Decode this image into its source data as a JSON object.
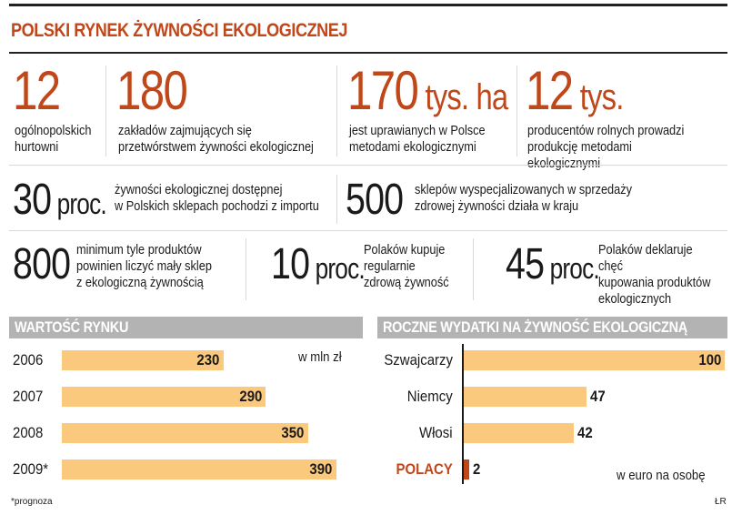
{
  "title": "POLSKI RYNEK ŻYWNOŚCI EKOLOGICZNEJ",
  "stats_row1": [
    {
      "number": "12",
      "unit": "",
      "text": "ogólnopolskich\nhurtowni"
    },
    {
      "number": "180",
      "unit": "",
      "text": "zakładów zajmujących się\nprzetwórstwem żywności ekologicznej"
    },
    {
      "number": "170",
      "unit": " tys. ha",
      "text": "jest uprawianych w Polsce\nmetodami ekologicznymi"
    },
    {
      "number": "12",
      "unit": " tys.",
      "text": "producentów rolnych prowadzi\nprodukcję metodami ekologicznymi"
    }
  ],
  "stats_row2": [
    {
      "number": "30",
      "unit": " proc.",
      "text": "żywności ekologicznej dostępnej\nw Polskich sklepach pochodzi z importu"
    },
    {
      "number": "500",
      "unit": "",
      "text": "sklepów wyspecjalizowanych w sprzedaży\nzdrowej żywności działa w kraju"
    }
  ],
  "stats_row3": [
    {
      "number": "800",
      "unit": "",
      "text": "minimum tyle produktów\npowinien liczyć mały sklep\nz ekologiczną żywnością"
    },
    {
      "number": "10",
      "unit": " proc.",
      "text": "Polaków kupuje\nregularnie\nzdrową żywność"
    },
    {
      "number": "45",
      "unit": " proc.",
      "text": "Polaków deklaruje chęć\nkupowania produktów\nekologicznych"
    }
  ],
  "colors": {
    "accent": "#c0471a",
    "bar": "#fbc97e",
    "section": "#b3b3b3"
  },
  "chart_data": [
    {
      "type": "bar",
      "title": "WARTOŚĆ RYNKU",
      "unit_label": "w mln zł",
      "categories": [
        "2006",
        "2007",
        "2008",
        "2009*"
      ],
      "values": [
        230,
        290,
        350,
        390
      ],
      "orientation": "horizontal",
      "xlim": [
        0,
        410
      ]
    },
    {
      "type": "bar",
      "title": "ROCZNE WYDATKI NA ŻYWNOŚĆ EKOLOGICZNĄ",
      "unit_label": "w euro na osobę",
      "categories": [
        "Szwajcarzy",
        "Niemcy",
        "Włosi",
        "POLACY"
      ],
      "values": [
        100,
        47,
        42,
        2
      ],
      "highlight": "POLACY",
      "orientation": "horizontal",
      "xlim": [
        0,
        100
      ]
    }
  ],
  "footnote": "*prognoza",
  "credit": "ŁR"
}
